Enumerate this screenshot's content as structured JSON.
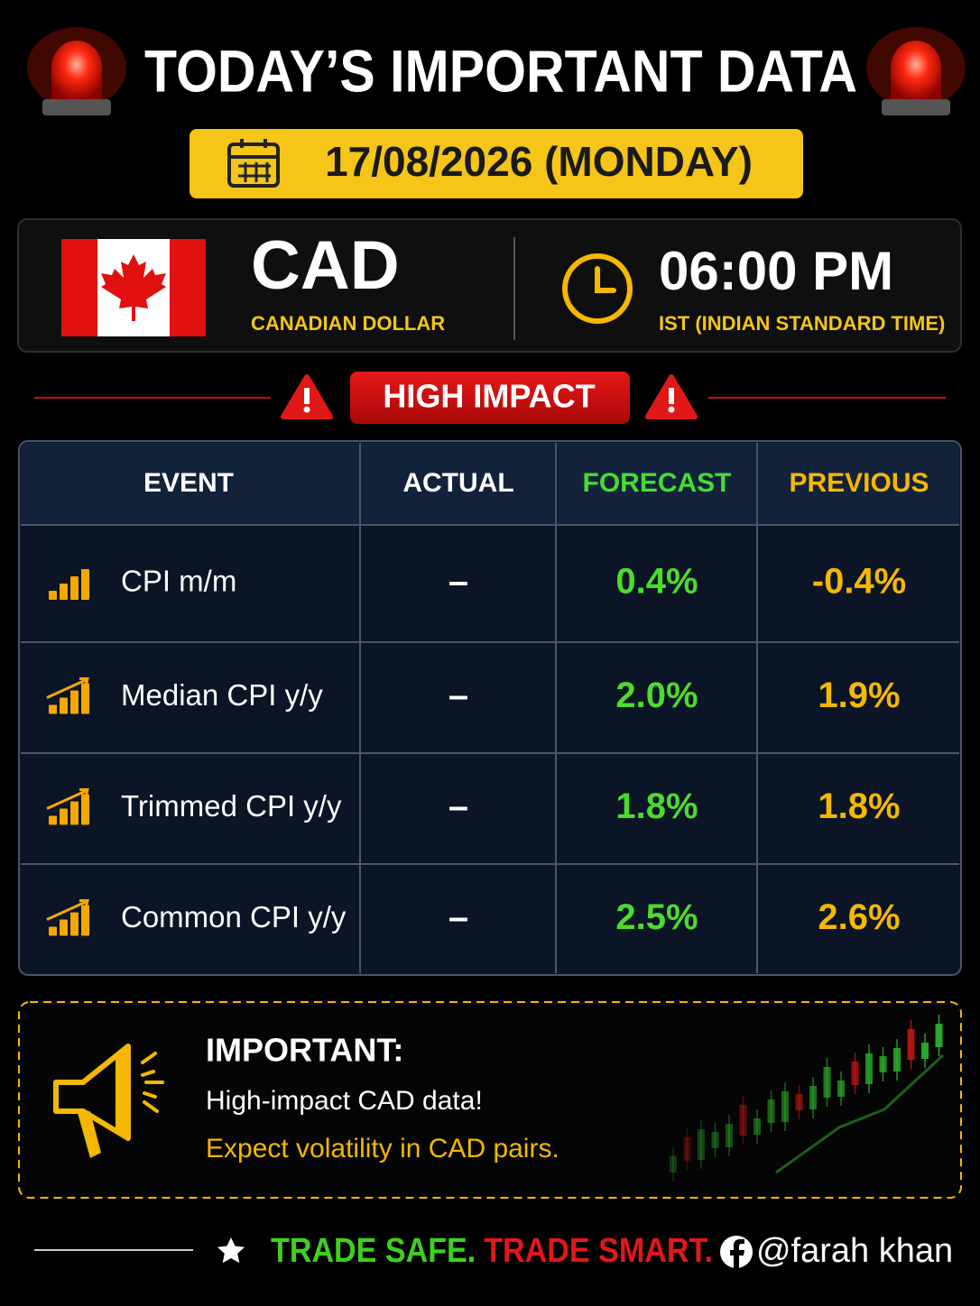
{
  "header": {
    "title": "TODAY’S IMPORTANT DATA",
    "date": "17/08/2026 (MONDAY)"
  },
  "currency": {
    "code": "CAD",
    "name": "CANADIAN DOLLAR"
  },
  "time": {
    "value": "06:00 PM",
    "zone": "IST (INDIAN STANDARD TIME)"
  },
  "impact": "HIGH IMPACT",
  "table": {
    "headers": [
      "EVENT",
      "ACTUAL",
      "FORECAST",
      "PREVIOUS"
    ],
    "rows": [
      [
        "CPI m/m",
        "–",
        "0.4%",
        "-0.4%"
      ],
      [
        "Median CPI y/y",
        "–",
        "2.0%",
        "1.9%"
      ],
      [
        "Trimmed CPI y/y",
        "–",
        "1.8%",
        "1.8%"
      ],
      [
        "Common CPI y/y",
        "–",
        "2.5%",
        "2.6%"
      ]
    ]
  },
  "note": {
    "title": "IMPORTANT:",
    "line1": "High-impact CAD data!",
    "line2": "Expect volatility in CAD pairs."
  },
  "footer": {
    "slogan": [
      "TRADE SAFE.",
      "TRADE SMART."
    ],
    "handle": "@farah khan"
  }
}
